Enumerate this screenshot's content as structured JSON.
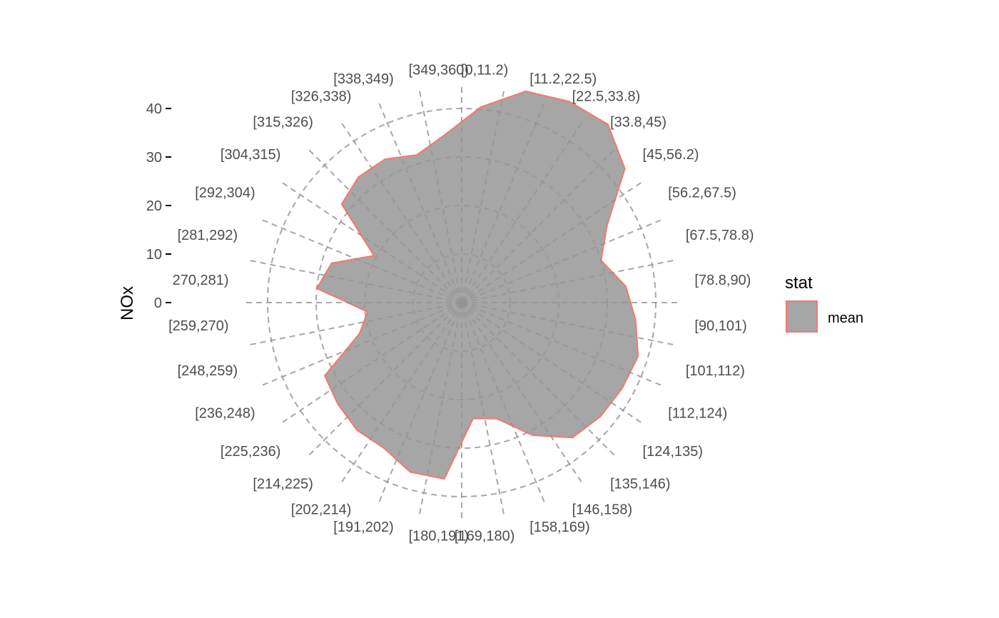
{
  "chart_data": {
    "type": "polar-area",
    "ylabel": "NOx",
    "ylim": [
      0,
      45
    ],
    "y_ticks": [
      0,
      10,
      20,
      30,
      40
    ],
    "y_tick_labels": [
      "0",
      "10",
      "20",
      "30",
      "40"
    ],
    "categories": [
      "[0,11.2)",
      "[11.2,22.5)",
      "[22.5,33.8)",
      "[33.8,45)",
      "[45,56.2)",
      "[56.2,67.5)",
      "[67.5,78.8)",
      "[78.8,90)",
      "[90,101)",
      "[101,112)",
      "[112,124)",
      "[124,135)",
      "[135,146)",
      "[146,158)",
      "[158,169)",
      "[169,180)",
      "[180,191)",
      "[191,202)",
      "[202,214)",
      "[214,225)",
      "[225,236)",
      "[236,248)",
      "[248,259)",
      "[259,270)",
      "270,281)",
      "[281,292)",
      "[292,304)",
      "[304,315)",
      "[315,326)",
      "[326,338)",
      "[338,349)",
      "[349,360)"
    ],
    "series": [
      {
        "name": "mean",
        "values": [
          40.5,
          45.5,
          47,
          47.5,
          43.5,
          34,
          30,
          34,
          36,
          38,
          37.5,
          37,
          36,
          31,
          25,
          24,
          36.5,
          36.5,
          34,
          34,
          33,
          32,
          22,
          19.5,
          30,
          28,
          20.5,
          32,
          33.5,
          33.5,
          31.8,
          34.8
        ],
        "fill": "#a6a6a6",
        "stroke": "#f8766d"
      }
    ],
    "grid": true,
    "legend": {
      "title": "stat",
      "position": "right",
      "entries": [
        "mean"
      ]
    }
  }
}
